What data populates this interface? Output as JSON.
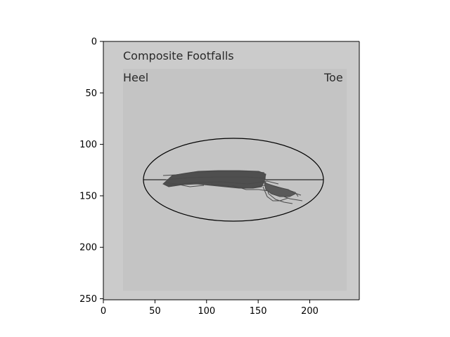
{
  "figure": {
    "image_text": {
      "title": "Composite Footfalls",
      "heel_label": "Heel",
      "toe_label": "Toe"
    },
    "x_axis": {
      "ticks": [
        0,
        50,
        100,
        150,
        200
      ],
      "range": [
        0,
        248
      ]
    },
    "y_axis": {
      "ticks": [
        0,
        50,
        100,
        150,
        200,
        250
      ],
      "range": [
        251,
        0
      ],
      "inverted": true
    },
    "colors": {
      "image_background": "#cbcbcb",
      "inner_panel": "#c4c4c4",
      "ellipse_stroke": "#000000",
      "footfall_trace": "#4a4a4a",
      "axis": "#000000"
    }
  }
}
